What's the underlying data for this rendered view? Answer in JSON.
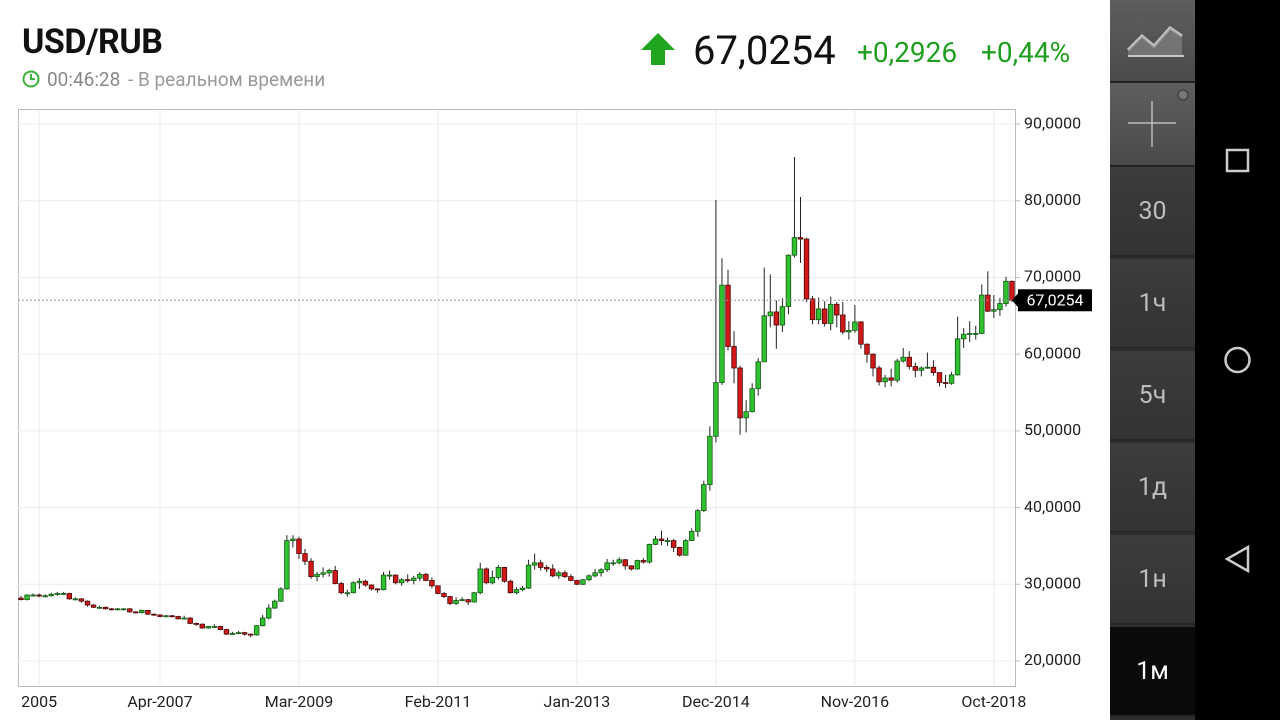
{
  "header": {
    "symbol": "USD/RUB",
    "time": "00:46:28",
    "status": "- В реальном времени",
    "change": "+0,2926",
    "change_percent": "+0,44%"
  },
  "toolbar": {
    "intervals": [
      "30",
      "1ч",
      "5ч",
      "1д",
      "1н",
      "1м"
    ]
  },
  "chart_data": {
    "type": "candlestick",
    "categories": [
      null,
      null,
      null,
      "2005",
      null,
      null,
      null,
      null,
      null,
      null,
      null,
      null,
      null,
      null,
      null,
      null,
      null,
      null,
      null,
      null,
      null,
      null,
      null,
      "Apr-2007",
      null,
      null,
      null,
      null,
      null,
      null,
      null,
      null,
      null,
      null,
      null,
      null,
      null,
      null,
      null,
      null,
      null,
      null,
      null,
      null,
      null,
      null,
      "Mar-2009",
      null,
      null,
      null,
      null,
      null,
      null,
      null,
      null,
      null,
      null,
      null,
      null,
      null,
      null,
      null,
      null,
      null,
      null,
      null,
      null,
      null,
      null,
      "Feb-2011",
      null,
      null,
      null,
      null,
      null,
      null,
      null,
      null,
      null,
      null,
      null,
      null,
      null,
      null,
      null,
      null,
      null,
      null,
      null,
      null,
      null,
      null,
      "Jan-2013",
      null,
      null,
      null,
      null,
      null,
      null,
      null,
      null,
      null,
      null,
      null,
      null,
      null,
      null,
      null,
      null,
      null,
      null,
      null,
      null,
      null,
      null,
      "Dec-2014",
      null,
      null,
      null,
      null,
      null,
      null,
      null,
      null,
      null,
      null,
      null,
      null,
      null,
      null,
      null,
      null,
      null,
      null,
      null,
      null,
      null,
      null,
      "Nov-2016",
      null,
      null,
      null,
      null,
      null,
      null,
      null,
      null,
      null,
      null,
      null,
      null,
      null,
      null,
      null,
      null,
      null,
      null,
      null,
      null,
      null,
      null,
      "Oct-2018",
      null,
      null,
      null
    ],
    "open": [
      28.2,
      28.0,
      28.6,
      28.6,
      28.5,
      28.5,
      28.7,
      28.8,
      28.8,
      28.1,
      28.1,
      27.8,
      27.3,
      27.0,
      27.0,
      26.8,
      26.7,
      26.8,
      26.8,
      26.4,
      26.3,
      26.6,
      26.1,
      26.0,
      25.8,
      25.9,
      25.8,
      25.5,
      25.6,
      24.9,
      24.8,
      24.3,
      24.5,
      24.5,
      24.1,
      23.5,
      23.6,
      23.7,
      23.5,
      23.4,
      24.6,
      25.6,
      26.9,
      27.8,
      29.4,
      35.7,
      35.9,
      34.0,
      33.0,
      31.0,
      31.3,
      31.5,
      31.8,
      30.1,
      28.9,
      28.9,
      30.2,
      30.4,
      29.9,
      29.4,
      29.3,
      31.2,
      31.2,
      30.2,
      30.6,
      30.5,
      30.8,
      31.3,
      30.5,
      29.8,
      28.8,
      28.4,
      27.5,
      27.9,
      28.0,
      27.7,
      28.9,
      32.0,
      30.2,
      30.9,
      32.2,
      30.4,
      28.9,
      29.3,
      29.5,
      32.5,
      32.8,
      32.2,
      32.0,
      31.1,
      31.5,
      31.0,
      30.5,
      30.0,
      30.6,
      31.1,
      31.5,
      31.9,
      32.8,
      32.8,
      33.2,
      32.4,
      32.0,
      33.1,
      32.9,
      35.2,
      35.9,
      35.7,
      35.7,
      34.8,
      33.8,
      35.7,
      36.9,
      39.6,
      43.0,
      49.3,
      56.3,
      69.0,
      61.0,
      58.2,
      51.7,
      52.5,
      55.5,
      59.0,
      65.0,
      65.5,
      63.8,
      66.2,
      72.9,
      75.2,
      75.0,
      67.2,
      64.5,
      65.9,
      64.0,
      66.5,
      65.1,
      62.9,
      63.1,
      64.2,
      61.3,
      60.0,
      58.2,
      56.4,
      56.9,
      56.6,
      59.1,
      59.6,
      58.4,
      57.9,
      58.2,
      58.3,
      57.6,
      56.3,
      56.2,
      57.3,
      62.0,
      62.6,
      62.7,
      62.7,
      67.7,
      65.6,
      65.8,
      66.6,
      69.5
    ],
    "high": [
      28.5,
      28.7,
      28.8,
      28.8,
      28.7,
      28.9,
      29.0,
      29.0,
      28.9,
      28.3,
      28.2,
      27.9,
      27.4,
      27.2,
      27.1,
      26.9,
      26.9,
      26.9,
      26.9,
      26.5,
      26.7,
      26.6,
      26.2,
      26.1,
      26.0,
      26.0,
      25.9,
      25.9,
      25.7,
      25.0,
      24.9,
      24.6,
      24.8,
      24.6,
      24.2,
      23.8,
      23.9,
      23.8,
      23.6,
      24.7,
      26.0,
      27.4,
      28.0,
      29.6,
      36.4,
      36.4,
      36.2,
      34.6,
      33.4,
      31.6,
      32.2,
      32.0,
      32.4,
      30.3,
      29.3,
      30.4,
      30.8,
      30.6,
      30.0,
      29.5,
      31.6,
      31.8,
      31.3,
      30.8,
      31.3,
      31.1,
      31.6,
      31.5,
      30.9,
      29.8,
      29.0,
      28.5,
      28.3,
      28.3,
      28.1,
      29.0,
      32.8,
      32.2,
      31.8,
      32.5,
      32.3,
      30.6,
      29.6,
      29.8,
      33.2,
      34.0,
      33.2,
      32.5,
      32.6,
      31.8,
      31.8,
      31.3,
      30.6,
      30.7,
      31.3,
      32.0,
      32.1,
      33.3,
      33.2,
      33.5,
      33.3,
      32.5,
      33.2,
      33.4,
      35.3,
      36.3,
      37.0,
      36.1,
      35.9,
      34.9,
      35.9,
      37.3,
      39.8,
      43.5,
      50.6,
      80.1,
      72.5,
      71.0,
      63.0,
      58.5,
      54.0,
      56.2,
      59.5,
      71.3,
      70.4,
      67.0,
      67.3,
      73.0,
      85.7,
      80.5,
      75.2,
      67.6,
      67.4,
      66.9,
      67.5,
      66.8,
      66.8,
      64.3,
      66.4,
      64.3,
      61.4,
      60.1,
      58.5,
      57.3,
      58.1,
      59.4,
      60.8,
      60.4,
      58.9,
      58.4,
      60.2,
      59.2,
      57.6,
      57.3,
      57.7,
      64.9,
      63.4,
      64.3,
      63.7,
      69.1,
      70.8,
      67.7,
      67.3,
      70.1,
      69.6
    ],
    "low": [
      27.9,
      27.9,
      28.4,
      28.3,
      28.3,
      28.4,
      28.5,
      28.6,
      28.0,
      27.9,
      27.6,
      27.1,
      26.9,
      26.8,
      26.7,
      26.6,
      26.6,
      26.6,
      26.3,
      26.2,
      26.2,
      26.0,
      25.9,
      25.7,
      25.7,
      25.7,
      25.4,
      25.4,
      24.8,
      24.6,
      24.2,
      24.2,
      24.3,
      24.0,
      23.4,
      23.4,
      23.5,
      23.3,
      23.1,
      23.3,
      24.5,
      25.4,
      26.8,
      27.7,
      29.3,
      34.8,
      33.3,
      32.5,
      30.7,
      30.4,
      30.9,
      31.0,
      30.0,
      28.7,
      28.4,
      28.8,
      29.4,
      29.7,
      29.2,
      28.9,
      29.2,
      30.6,
      30.0,
      29.8,
      30.2,
      30.0,
      30.4,
      30.4,
      29.5,
      28.7,
      28.2,
      27.3,
      27.3,
      27.8,
      27.3,
      27.6,
      28.7,
      30.0,
      30.0,
      30.6,
      30.2,
      28.8,
      28.7,
      29.1,
      29.4,
      31.9,
      31.8,
      31.6,
      30.9,
      30.7,
      30.8,
      30.4,
      29.9,
      29.9,
      30.4,
      30.9,
      31.0,
      31.6,
      32.4,
      32.6,
      31.9,
      31.8,
      31.9,
      32.7,
      32.7,
      35.1,
      35.1,
      35.0,
      34.2,
      33.6,
      33.7,
      35.7,
      36.2,
      39.4,
      42.2,
      48.5,
      56.0,
      60.5,
      56.2,
      49.5,
      49.8,
      52.4,
      54.6,
      59.0,
      63.5,
      60.7,
      62.9,
      65.2,
      72.6,
      71.9,
      66.8,
      63.9,
      63.9,
      63.6,
      63.1,
      63.5,
      62.6,
      61.9,
      62.8,
      60.7,
      58.9,
      57.1,
      55.9,
      55.7,
      55.8,
      56.3,
      58.9,
      58.0,
      57.0,
      57.1,
      58.1,
      57.2,
      55.8,
      55.6,
      56.0,
      57.2,
      60.8,
      61.6,
      61.9,
      62.6,
      65.5,
      64.7,
      65.0,
      66.2,
      66.8
    ],
    "close": [
      28.0,
      28.6,
      28.6,
      28.5,
      28.5,
      28.7,
      28.8,
      28.8,
      28.1,
      28.1,
      27.8,
      27.3,
      27.0,
      27.0,
      26.8,
      26.7,
      26.8,
      26.8,
      26.4,
      26.3,
      26.6,
      26.1,
      26.0,
      25.8,
      25.9,
      25.8,
      25.5,
      25.6,
      24.9,
      24.8,
      24.3,
      24.5,
      24.5,
      24.1,
      23.5,
      23.6,
      23.7,
      23.5,
      23.4,
      24.6,
      25.6,
      26.9,
      27.8,
      29.4,
      35.7,
      35.9,
      34.0,
      33.0,
      31.0,
      31.3,
      31.5,
      31.8,
      30.1,
      28.9,
      28.9,
      30.2,
      30.4,
      29.9,
      29.4,
      29.3,
      31.2,
      31.2,
      30.2,
      30.6,
      30.5,
      30.8,
      31.3,
      30.5,
      29.8,
      28.8,
      28.4,
      27.5,
      27.9,
      28.0,
      27.7,
      28.9,
      32.0,
      30.2,
      30.9,
      32.2,
      30.4,
      28.9,
      29.3,
      29.5,
      32.5,
      32.8,
      32.2,
      32.0,
      31.1,
      31.5,
      31.0,
      30.5,
      30.0,
      30.6,
      31.1,
      31.5,
      31.9,
      32.8,
      32.8,
      33.2,
      32.4,
      32.0,
      33.1,
      32.9,
      35.2,
      35.9,
      35.7,
      35.7,
      34.8,
      33.8,
      35.7,
      36.9,
      39.6,
      43.0,
      49.3,
      56.3,
      69.0,
      61.0,
      58.2,
      51.7,
      52.5,
      55.5,
      59.0,
      65.0,
      65.5,
      63.8,
      66.2,
      72.9,
      75.2,
      75.0,
      67.2,
      64.5,
      65.9,
      64.0,
      66.5,
      65.1,
      62.9,
      63.1,
      64.2,
      61.3,
      60.0,
      58.2,
      56.4,
      56.9,
      56.6,
      59.1,
      59.6,
      58.4,
      57.9,
      58.2,
      58.3,
      57.6,
      56.3,
      56.2,
      57.3,
      62.0,
      62.6,
      62.7,
      62.7,
      67.7,
      65.6,
      65.8,
      66.6,
      69.5,
      67.0
    ],
    "up_color": "#2fc12f",
    "down_color": "#d01818",
    "last": {
      "value": 67.0254,
      "label": "67,0254"
    },
    "ylim": [
      16.74,
      91.83
    ],
    "yticks": [
      {
        "value": 20,
        "label": "20,0000"
      },
      {
        "value": 30,
        "label": "30,0000"
      },
      {
        "value": 40,
        "label": "40,0000"
      },
      {
        "value": 50,
        "label": "50,0000"
      },
      {
        "value": 60,
        "label": "60,0000"
      },
      {
        "value": 70,
        "label": "70,0000"
      },
      {
        "value": 80,
        "label": "80,0000"
      },
      {
        "value": 90,
        "label": "90,0000"
      }
    ],
    "grid": true
  }
}
